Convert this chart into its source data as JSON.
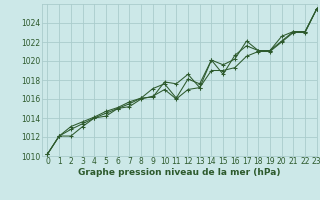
{
  "title": "Graphe pression niveau de la mer (hPa)",
  "bg_color": "#cce8e8",
  "grid_color": "#aacccc",
  "line_color": "#2d5a2d",
  "xlim": [
    -0.5,
    23
  ],
  "ylim": [
    1010,
    1026
  ],
  "yticks": [
    1010,
    1012,
    1014,
    1016,
    1018,
    1020,
    1022,
    1024
  ],
  "xticks": [
    0,
    1,
    2,
    3,
    4,
    5,
    6,
    7,
    8,
    9,
    10,
    11,
    12,
    13,
    14,
    15,
    16,
    17,
    18,
    19,
    20,
    21,
    22,
    23
  ],
  "series": [
    [
      1010.2,
      1012.1,
      1012.1,
      1013.1,
      1014.0,
      1014.5,
      1015.0,
      1015.2,
      1016.0,
      1016.3,
      1017.0,
      1016.0,
      1017.0,
      1017.2,
      1019.0,
      1019.0,
      1019.3,
      1020.5,
      1021.0,
      1021.0,
      1022.0,
      1023.0,
      1023.0,
      1025.5
    ],
    [
      1010.2,
      1012.1,
      1012.8,
      1013.4,
      1014.0,
      1014.2,
      1015.0,
      1015.5,
      1016.1,
      1016.2,
      1017.8,
      1017.6,
      1018.6,
      1017.2,
      1020.1,
      1018.6,
      1020.6,
      1021.6,
      1021.1,
      1021.1,
      1022.1,
      1023.1,
      1023.1,
      1025.5
    ],
    [
      1010.2,
      1012.1,
      1013.1,
      1013.6,
      1014.1,
      1014.7,
      1015.1,
      1015.7,
      1016.1,
      1017.1,
      1017.6,
      1016.1,
      1018.1,
      1017.6,
      1020.1,
      1019.6,
      1020.2,
      1022.1,
      1021.1,
      1021.1,
      1022.6,
      1023.1,
      1023.1,
      1025.5
    ]
  ],
  "ylabel_fontsize": 5.5,
  "xlabel_fontsize": 6.5,
  "tick_fontsize": 5.5
}
